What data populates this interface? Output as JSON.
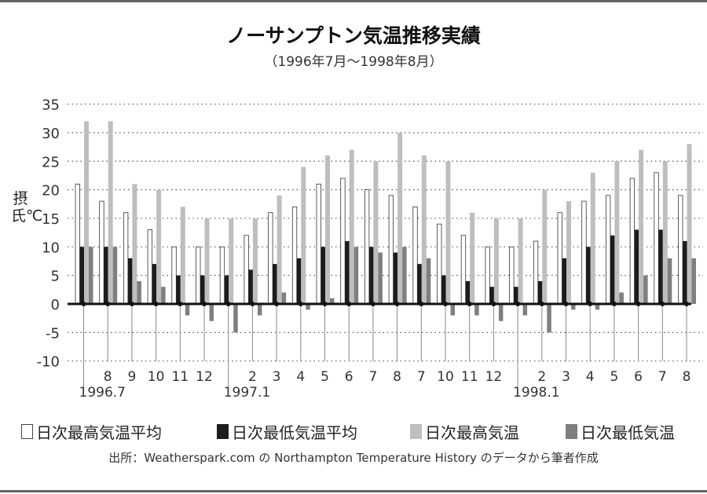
{
  "chart_data": {
    "type": "bar",
    "title": "ノーサンプトン気温推移実績",
    "subtitle": "（1996年7月～1998年8月）",
    "ylabel": "摂氏℃",
    "xlabel": "",
    "ylim": [
      -10,
      35
    ],
    "yticks": [
      35,
      30,
      25,
      20,
      15,
      10,
      5,
      0,
      -5,
      -10
    ],
    "grid": "horizontal dotted",
    "legend_position": "bottom",
    "categories": [
      "1996.7",
      "8",
      "9",
      "10",
      "11",
      "12",
      "1997.1",
      "2",
      "3",
      "4",
      "5",
      "6",
      "7",
      "8",
      "7",
      "10",
      "11",
      "12",
      "1998.1",
      "2",
      "3",
      "4",
      "5",
      "6",
      "7",
      "8"
    ],
    "year_marker_categories": [
      "1996.7",
      "1997.1",
      "1998.1"
    ],
    "series": [
      {
        "name": "日次最高気温平均",
        "color": "#ffffff",
        "stroke": "#333333",
        "values": [
          21,
          18,
          16,
          13,
          10,
          10,
          10,
          12,
          16,
          17,
          21,
          22,
          20,
          19,
          17,
          14,
          12,
          10,
          10,
          11,
          16,
          18,
          19,
          22,
          23,
          19
        ]
      },
      {
        "name": "日次最低気温平均",
        "color": "#1e1b1c",
        "values": [
          10,
          10,
          8,
          7,
          5,
          5,
          5,
          6,
          7,
          8,
          10,
          11,
          10,
          9,
          7,
          5,
          4,
          3,
          3,
          4,
          8,
          10,
          12,
          13,
          13,
          11
        ]
      },
      {
        "name": "日次最高気温",
        "color": "#bdbfbf",
        "values": [
          32,
          32,
          21,
          20,
          17,
          15,
          15,
          15,
          19,
          24,
          26,
          27,
          25,
          30,
          26,
          25,
          16,
          15,
          15,
          20,
          18,
          23,
          25,
          27,
          25,
          28
        ]
      },
      {
        "name": "日次最低気温",
        "color": "#7e8080",
        "values": [
          10,
          10,
          4,
          3,
          -2,
          -3,
          -5,
          -2,
          2,
          -1,
          1,
          10,
          9,
          10,
          8,
          -2,
          -2,
          -3,
          -2,
          -5,
          -1,
          -1,
          2,
          5,
          8,
          8
        ]
      }
    ]
  },
  "source": "出所：Weatherspark.com の Northampton Temperature History のデータから筆者作成"
}
